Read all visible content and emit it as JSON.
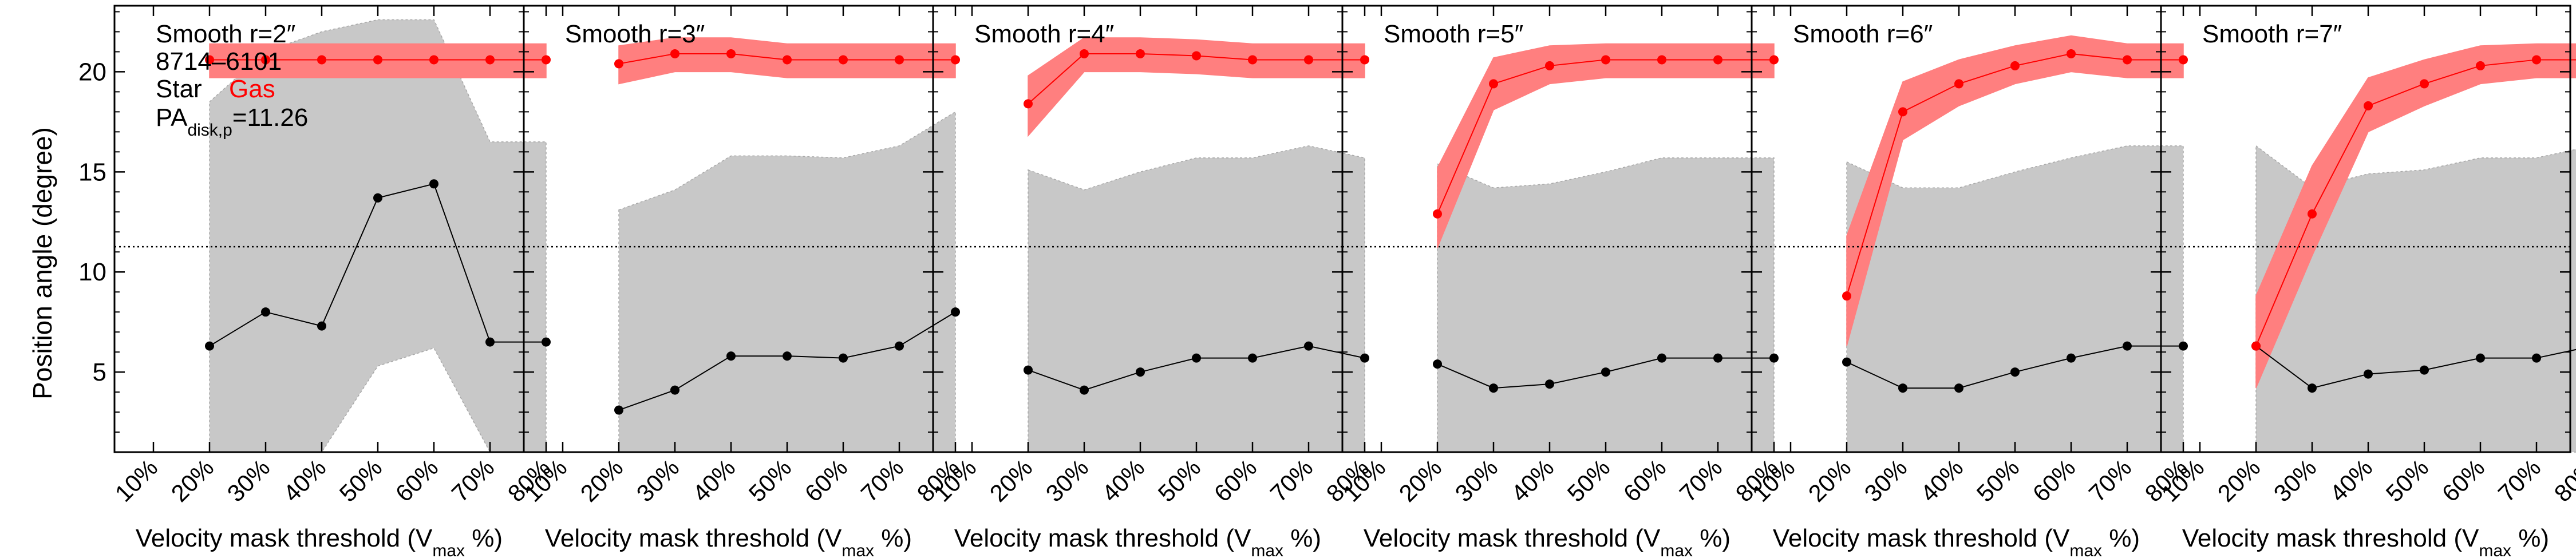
{
  "figure": {
    "ylabel": "Position angle (degree)",
    "xlabel_main": "Velocity mask threshold (V",
    "xlabel_sub": "max",
    "xlabel_tail": " %)",
    "galaxy_id": "8714–6101",
    "legend": {
      "star_label": "Star",
      "gas_label": "Gas"
    },
    "pa_label_main": "PA",
    "pa_label_sub": "disk,p",
    "pa_label_value": "=11.26",
    "colors": {
      "gas": "#ff0000",
      "gas_band": "#ff7f7f",
      "star_band": "#c8c8c8",
      "star": "#000000"
    }
  },
  "chart_data": [
    {
      "type": "line",
      "title": "Smooth r=2″",
      "categories": [
        "10%",
        "20%",
        "30%",
        "40%",
        "50%",
        "60%",
        "70%",
        "80%"
      ],
      "ylim": [
        1,
        23.3
      ],
      "yticks": [
        5,
        10,
        15,
        20
      ],
      "reference_line": 11.26,
      "series": [
        {
          "name": "Star",
          "x": [
            "20%",
            "30%",
            "40%",
            "50%",
            "60%",
            "70%",
            "80%"
          ],
          "values": [
            6.3,
            8.0,
            7.3,
            13.7,
            14.4,
            6.5,
            6.5
          ],
          "upper": [
            18.5,
            21.0,
            22.0,
            22.6,
            22.6,
            16.5,
            16.5
          ],
          "lower": [
            1.0,
            1.0,
            1.0,
            5.3,
            6.2,
            1.0,
            1.0
          ]
        },
        {
          "name": "Gas",
          "x": [
            "20%",
            "30%",
            "40%",
            "50%",
            "60%",
            "70%",
            "80%"
          ],
          "values": [
            20.6,
            20.6,
            20.6,
            20.6,
            20.6,
            20.6,
            20.6
          ],
          "upper": [
            21.4,
            21.4,
            21.4,
            21.4,
            21.4,
            21.4,
            21.4
          ],
          "lower": [
            19.7,
            19.7,
            19.7,
            19.7,
            19.7,
            19.7,
            19.7
          ]
        }
      ]
    },
    {
      "type": "line",
      "title": "Smooth r=3″",
      "categories": [
        "10%",
        "20%",
        "30%",
        "40%",
        "50%",
        "60%",
        "70%",
        "80%"
      ],
      "ylim": [
        1,
        23.3
      ],
      "yticks": [
        5,
        10,
        15,
        20
      ],
      "reference_line": 11.26,
      "series": [
        {
          "name": "Star",
          "x": [
            "20%",
            "30%",
            "40%",
            "50%",
            "60%",
            "70%",
            "80%"
          ],
          "values": [
            3.1,
            4.1,
            5.8,
            5.8,
            5.7,
            6.3,
            8.0
          ],
          "upper": [
            13.1,
            14.1,
            15.8,
            15.8,
            15.7,
            16.3,
            18.0
          ],
          "lower": [
            1.0,
            1.0,
            1.0,
            1.0,
            1.0,
            1.0,
            1.0
          ]
        },
        {
          "name": "Gas",
          "x": [
            "20%",
            "30%",
            "40%",
            "50%",
            "60%",
            "70%",
            "80%"
          ],
          "values": [
            20.4,
            20.9,
            20.9,
            20.6,
            20.6,
            20.6,
            20.6
          ],
          "upper": [
            21.3,
            21.7,
            21.7,
            21.4,
            21.4,
            21.4,
            21.4
          ],
          "lower": [
            19.4,
            20.0,
            20.0,
            19.7,
            19.7,
            19.7,
            19.7
          ]
        }
      ]
    },
    {
      "type": "line",
      "title": "Smooth r=4″",
      "categories": [
        "10%",
        "20%",
        "30%",
        "40%",
        "50%",
        "60%",
        "70%",
        "80%"
      ],
      "ylim": [
        1,
        23.3
      ],
      "yticks": [
        5,
        10,
        15,
        20
      ],
      "reference_line": 11.26,
      "series": [
        {
          "name": "Star",
          "x": [
            "20%",
            "30%",
            "40%",
            "50%",
            "60%",
            "70%",
            "80%"
          ],
          "values": [
            5.1,
            4.1,
            5.0,
            5.7,
            5.7,
            6.3,
            5.7
          ],
          "upper": [
            15.1,
            14.1,
            15.0,
            15.7,
            15.7,
            16.3,
            15.7
          ],
          "lower": [
            1.0,
            1.0,
            1.0,
            1.0,
            1.0,
            1.0,
            1.0
          ]
        },
        {
          "name": "Gas",
          "x": [
            "20%",
            "30%",
            "40%",
            "50%",
            "60%",
            "70%",
            "80%"
          ],
          "values": [
            18.4,
            20.9,
            20.9,
            20.8,
            20.6,
            20.6,
            20.6
          ],
          "upper": [
            19.8,
            21.7,
            21.7,
            21.6,
            21.4,
            21.4,
            21.4
          ],
          "lower": [
            16.8,
            20.0,
            20.0,
            19.9,
            19.7,
            19.7,
            19.7
          ]
        }
      ]
    },
    {
      "type": "line",
      "title": "Smooth r=5″",
      "categories": [
        "10%",
        "20%",
        "30%",
        "40%",
        "50%",
        "60%",
        "70%",
        "80%"
      ],
      "ylim": [
        1,
        23.3
      ],
      "yticks": [
        5,
        10,
        15,
        20
      ],
      "reference_line": 11.26,
      "series": [
        {
          "name": "Star",
          "x": [
            "20%",
            "30%",
            "40%",
            "50%",
            "60%",
            "70%",
            "80%"
          ],
          "values": [
            5.4,
            4.2,
            4.4,
            5.0,
            5.7,
            5.7,
            5.7
          ],
          "upper": [
            15.4,
            14.2,
            14.4,
            15.0,
            15.7,
            15.7,
            15.7
          ],
          "lower": [
            1.0,
            1.0,
            1.0,
            1.0,
            1.0,
            1.0,
            1.0
          ]
        },
        {
          "name": "Gas",
          "x": [
            "20%",
            "30%",
            "40%",
            "50%",
            "60%",
            "70%",
            "80%"
          ],
          "values": [
            12.9,
            19.4,
            20.3,
            20.6,
            20.6,
            20.6,
            20.6
          ],
          "upper": [
            15.2,
            20.7,
            21.3,
            21.4,
            21.4,
            21.4,
            21.4
          ],
          "lower": [
            11.2,
            18.1,
            19.4,
            19.7,
            19.7,
            19.7,
            19.7
          ]
        }
      ]
    },
    {
      "type": "line",
      "title": "Smooth r=6″",
      "categories": [
        "10%",
        "20%",
        "30%",
        "40%",
        "50%",
        "60%",
        "70%",
        "80%"
      ],
      "ylim": [
        1,
        23.3
      ],
      "yticks": [
        5,
        10,
        15,
        20
      ],
      "reference_line": 11.26,
      "series": [
        {
          "name": "Star",
          "x": [
            "20%",
            "30%",
            "40%",
            "50%",
            "60%",
            "70%",
            "80%"
          ],
          "values": [
            5.5,
            4.2,
            4.2,
            5.0,
            5.7,
            6.3,
            6.3
          ],
          "upper": [
            15.5,
            14.2,
            14.2,
            15.0,
            15.7,
            16.3,
            16.3
          ],
          "lower": [
            1.0,
            1.0,
            1.0,
            1.0,
            1.0,
            1.0,
            1.0
          ]
        },
        {
          "name": "Gas",
          "x": [
            "20%",
            "30%",
            "40%",
            "50%",
            "60%",
            "70%",
            "80%"
          ],
          "values": [
            8.8,
            18.0,
            19.4,
            20.3,
            20.9,
            20.6,
            20.6
          ],
          "upper": [
            11.8,
            19.5,
            20.6,
            21.3,
            21.8,
            21.4,
            21.4
          ],
          "lower": [
            6.3,
            16.6,
            18.3,
            19.4,
            20.0,
            19.7,
            19.7
          ]
        }
      ]
    },
    {
      "type": "line",
      "title": "Smooth r=7″",
      "categories": [
        "10%",
        "20%",
        "30%",
        "40%",
        "50%",
        "60%",
        "70%",
        "80%"
      ],
      "ylim": [
        1,
        23.3
      ],
      "yticks": [
        5,
        10,
        15,
        20
      ],
      "reference_line": 11.26,
      "series": [
        {
          "name": "Star",
          "x": [
            "20%",
            "30%",
            "40%",
            "50%",
            "60%",
            "70%",
            "80%"
          ],
          "values": [
            6.3,
            4.2,
            4.9,
            5.1,
            5.7,
            5.7,
            6.3
          ],
          "upper": [
            16.3,
            14.2,
            14.9,
            15.1,
            15.7,
            15.7,
            16.3
          ],
          "lower": [
            1.0,
            1.0,
            1.0,
            1.0,
            1.0,
            1.0,
            1.0
          ]
        },
        {
          "name": "Gas",
          "x": [
            "20%",
            "30%",
            "40%",
            "50%",
            "60%",
            "70%",
            "80%"
          ],
          "values": [
            6.3,
            12.9,
            18.3,
            19.4,
            20.3,
            20.6,
            20.6
          ],
          "upper": [
            8.8,
            15.3,
            19.7,
            20.6,
            21.3,
            21.4,
            21.4
          ],
          "lower": [
            4.2,
            10.8,
            17.0,
            18.3,
            19.4,
            19.7,
            19.7
          ]
        }
      ]
    }
  ]
}
